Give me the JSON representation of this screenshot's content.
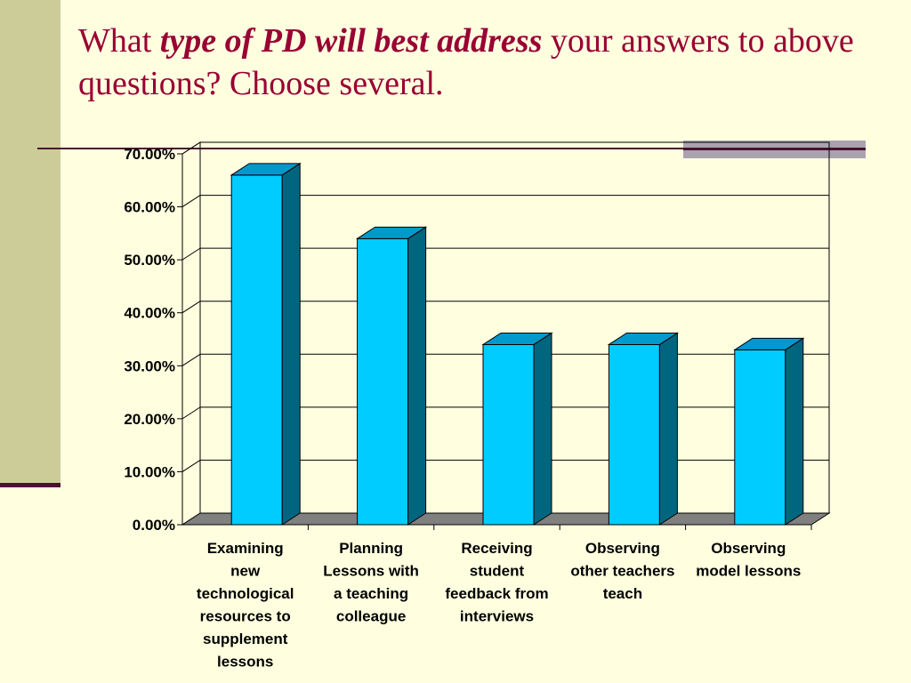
{
  "slide": {
    "title_lead": "What ",
    "title_emphasis": "type of PD will best address",
    "title_rest": " your answers to above questions?  Choose several."
  },
  "colors": {
    "background": "#FFFFE0",
    "title": "#990033",
    "bar_front": "#00CCFF",
    "bar_side": "#006680",
    "bar_top": "#0099CC",
    "floor": "#808080"
  },
  "chart_data": {
    "type": "bar",
    "title": "",
    "xlabel": "",
    "ylabel": "",
    "ylim": [
      0,
      0.7
    ],
    "y_ticks": [
      0,
      0.1,
      0.2,
      0.3,
      0.4,
      0.5,
      0.6,
      0.7
    ],
    "y_tick_labels": [
      "0.00%",
      "10.00%",
      "20.00%",
      "30.00%",
      "40.00%",
      "50.00%",
      "60.00%",
      "70.00%"
    ],
    "grid": true,
    "legend": "none",
    "categories": [
      [
        "Examining",
        "new",
        "technological",
        "resources to",
        "supplement",
        "lessons"
      ],
      [
        "Planning",
        "Lessons with",
        "a teaching",
        "colleague"
      ],
      [
        "Receiving",
        "student",
        "feedback from",
        "interviews"
      ],
      [
        "Observing",
        "other teachers",
        "teach"
      ],
      [
        "Observing",
        "model lessons"
      ]
    ],
    "values": [
      0.66,
      0.54,
      0.34,
      0.34,
      0.33
    ]
  }
}
